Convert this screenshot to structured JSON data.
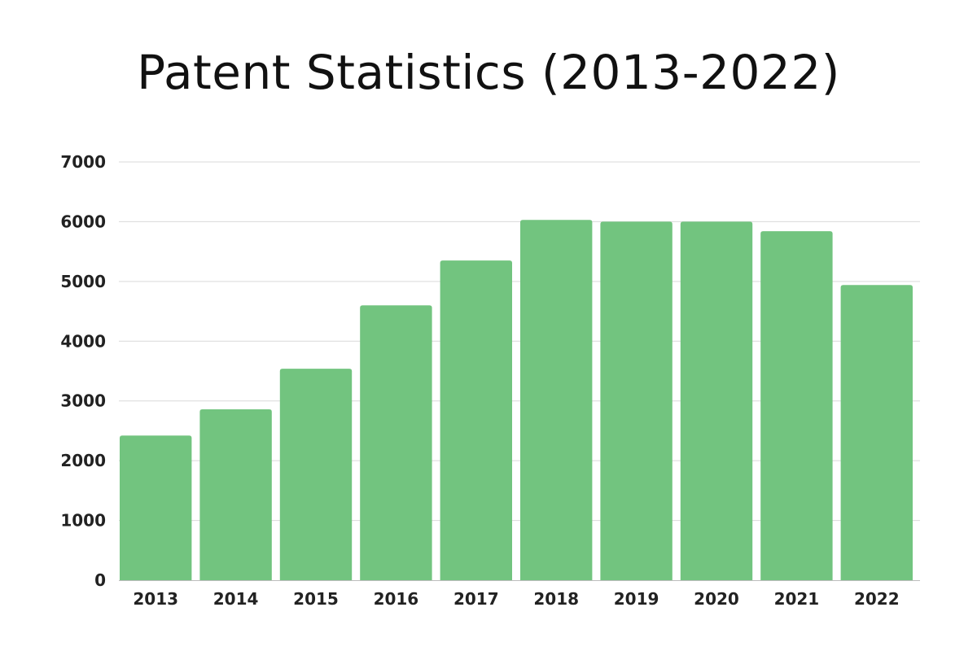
{
  "chart_data": {
    "type": "bar",
    "title": "Patent Statistics (2013-2022)",
    "xlabel": "",
    "ylabel": "",
    "categories": [
      "2013",
      "2014",
      "2015",
      "2016",
      "2017",
      "2018",
      "2019",
      "2020",
      "2021",
      "2022"
    ],
    "values": [
      2420,
      2860,
      3540,
      4600,
      5350,
      6030,
      6000,
      6000,
      5840,
      4940
    ],
    "ylim": [
      0,
      7000
    ],
    "yticks": [
      "0",
      "1000",
      "2000",
      "3000",
      "4000",
      "5000",
      "6000",
      "7000"
    ],
    "grid": true,
    "legend": "none",
    "colors": {
      "bar": "#72c47f",
      "grid": "#d9d9d9",
      "axis": "#bdbdbd"
    }
  }
}
